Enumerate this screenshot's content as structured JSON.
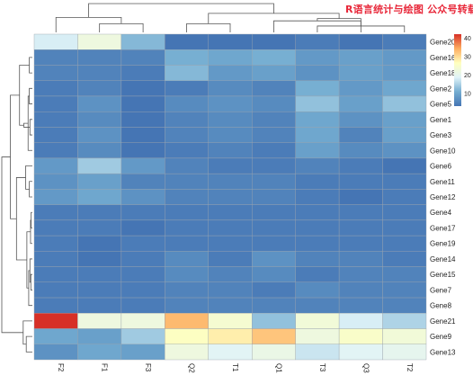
{
  "watermark_text": "R语言统计与绘图 公众号转载",
  "chart_data": {
    "type": "heatmap",
    "title": "",
    "columns": [
      "F2",
      "F1",
      "F3",
      "Q2",
      "T1",
      "Q1",
      "T3",
      "Q3",
      "T2"
    ],
    "rows": [
      "Gene20",
      "Gene16",
      "Gene18",
      "Gene2",
      "Gene5",
      "Gene1",
      "Gene3",
      "Gene10",
      "Gene6",
      "Gene11",
      "Gene12",
      "Gene4",
      "Gene17",
      "Gene19",
      "Gene14",
      "Gene15",
      "Gene7",
      "Gene8",
      "Gene21",
      "Gene9",
      "Gene13"
    ],
    "values": [
      [
        18,
        22,
        12,
        3,
        3,
        3,
        4,
        3,
        4
      ],
      [
        5,
        5,
        5,
        11,
        10,
        11,
        8,
        9,
        8
      ],
      [
        5,
        5,
        4,
        12,
        8,
        9,
        7,
        9,
        8
      ],
      [
        4,
        5,
        3,
        4,
        6,
        5,
        11,
        8,
        10
      ],
      [
        4,
        7,
        3,
        6,
        7,
        6,
        13,
        9,
        13
      ],
      [
        4,
        6,
        3,
        5,
        6,
        5,
        10,
        7,
        9
      ],
      [
        4,
        7,
        3,
        5,
        6,
        5,
        10,
        5,
        9
      ],
      [
        4,
        6,
        3,
        4,
        5,
        4,
        9,
        6,
        7
      ],
      [
        8,
        14,
        8,
        5,
        4,
        4,
        5,
        4,
        3
      ],
      [
        7,
        9,
        5,
        5,
        5,
        5,
        4,
        4,
        4
      ],
      [
        8,
        10,
        7,
        5,
        5,
        5,
        4,
        3,
        4
      ],
      [
        4,
        4,
        4,
        4,
        4,
        4,
        4,
        4,
        4
      ],
      [
        4,
        4,
        3,
        4,
        4,
        4,
        4,
        4,
        4
      ],
      [
        4,
        3,
        4,
        4,
        4,
        4,
        4,
        4,
        4
      ],
      [
        4,
        3,
        4,
        6,
        4,
        7,
        5,
        5,
        4
      ],
      [
        4,
        4,
        4,
        6,
        5,
        6,
        4,
        5,
        5
      ],
      [
        4,
        4,
        4,
        5,
        5,
        4,
        6,
        5,
        5
      ],
      [
        4,
        4,
        4,
        5,
        5,
        5,
        5,
        5,
        5
      ],
      [
        42,
        22,
        22,
        33,
        24,
        13,
        23,
        18,
        15
      ],
      [
        10,
        9,
        14,
        26,
        28,
        32,
        22,
        25,
        23
      ],
      [
        7,
        10,
        9,
        22,
        19,
        21,
        17,
        19,
        20
      ]
    ],
    "color_scale": [
      "#4575b4",
      "#74add1",
      "#e0f3f8",
      "#ffffbf",
      "#fdae61",
      "#d73027"
    ],
    "range": [
      3,
      42
    ],
    "legend_ticks": [
      10,
      20,
      30,
      40
    ],
    "row_clusters": [
      [
        [
          0.0,
          0.3
        ],
        [
          0.3,
          0.7
        ]
      ],
      [
        [
          0.0,
          0.3
        ],
        [
          0.3,
          0.7
        ]
      ],
      [
        [
          0.0,
          0.3
        ],
        [
          0.3,
          0.7
        ]
      ],
      [
        [
          0.0,
          0.3
        ],
        [
          0.3,
          0.7
        ]
      ]
    ],
    "row_dendrogram_merges": [
      [
        1,
        2,
        0.1
      ],
      [
        3,
        4,
        0.1
      ],
      [
        5,
        6,
        0.08
      ],
      [
        -2,
        7,
        0.14
      ],
      [
        -3,
        -4,
        0.28
      ],
      [
        -1,
        -5,
        0.42
      ],
      [
        9,
        10,
        0.1
      ],
      [
        8,
        -7,
        0.22
      ],
      [
        11,
        12,
        0.04
      ],
      [
        13,
        -9,
        0.06
      ],
      [
        15,
        16,
        0.05
      ],
      [
        14,
        -11,
        0.08
      ],
      [
        17,
        -12,
        0.12
      ],
      [
        -10,
        -13,
        0.18
      ],
      [
        -8,
        -14,
        0.52
      ],
      [
        -6,
        -15,
        0.72
      ],
      [
        19,
        20,
        0.2
      ],
      [
        18,
        -17,
        0.3
      ],
      [
        -16,
        -18,
        1.0
      ]
    ],
    "column_dendrogram_merges": [
      [
        1,
        2,
        0.3
      ],
      [
        0,
        -1,
        0.52
      ],
      [
        6,
        8,
        0.22
      ],
      [
        5,
        -3,
        0.4
      ],
      [
        7,
        -4,
        0.48
      ],
      [
        3,
        4,
        0.3
      ],
      [
        -6,
        -5,
        0.66
      ],
      [
        -2,
        -7,
        1.0
      ]
    ]
  }
}
